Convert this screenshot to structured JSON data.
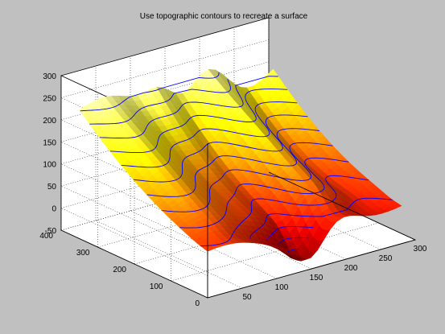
{
  "chart_data": {
    "type": "surface3d",
    "title": "Use topographic contours to recreate a surface",
    "colormap": "hot",
    "colormap_stops": [
      "#7a0000",
      "#cc0000",
      "#ff4400",
      "#ff9900",
      "#f0e000",
      "#fafa60",
      "#fbfbe0"
    ],
    "contour_color": "#0000ff",
    "background": "#c0c0c0",
    "axes_background": "#ffffff",
    "grid": true,
    "x_ticks": [
      50,
      100,
      150,
      200,
      250,
      300
    ],
    "x_range": [
      0,
      300
    ],
    "y_ticks": [
      0,
      100,
      200,
      300,
      400
    ],
    "y_range": [
      0,
      400
    ],
    "z_ticks": [
      -50,
      0,
      50,
      100,
      150,
      200,
      250,
      300
    ],
    "z_range": [
      -50,
      300
    ],
    "contour_levels": [
      -40,
      -20,
      0,
      20,
      40,
      60,
      80,
      100,
      120,
      140,
      160,
      180,
      200,
      220,
      240,
      260
    ],
    "surface_extent": {
      "x": [
        0,
        280
      ],
      "y": [
        0,
        350
      ],
      "z": [
        -40,
        280
      ]
    }
  }
}
